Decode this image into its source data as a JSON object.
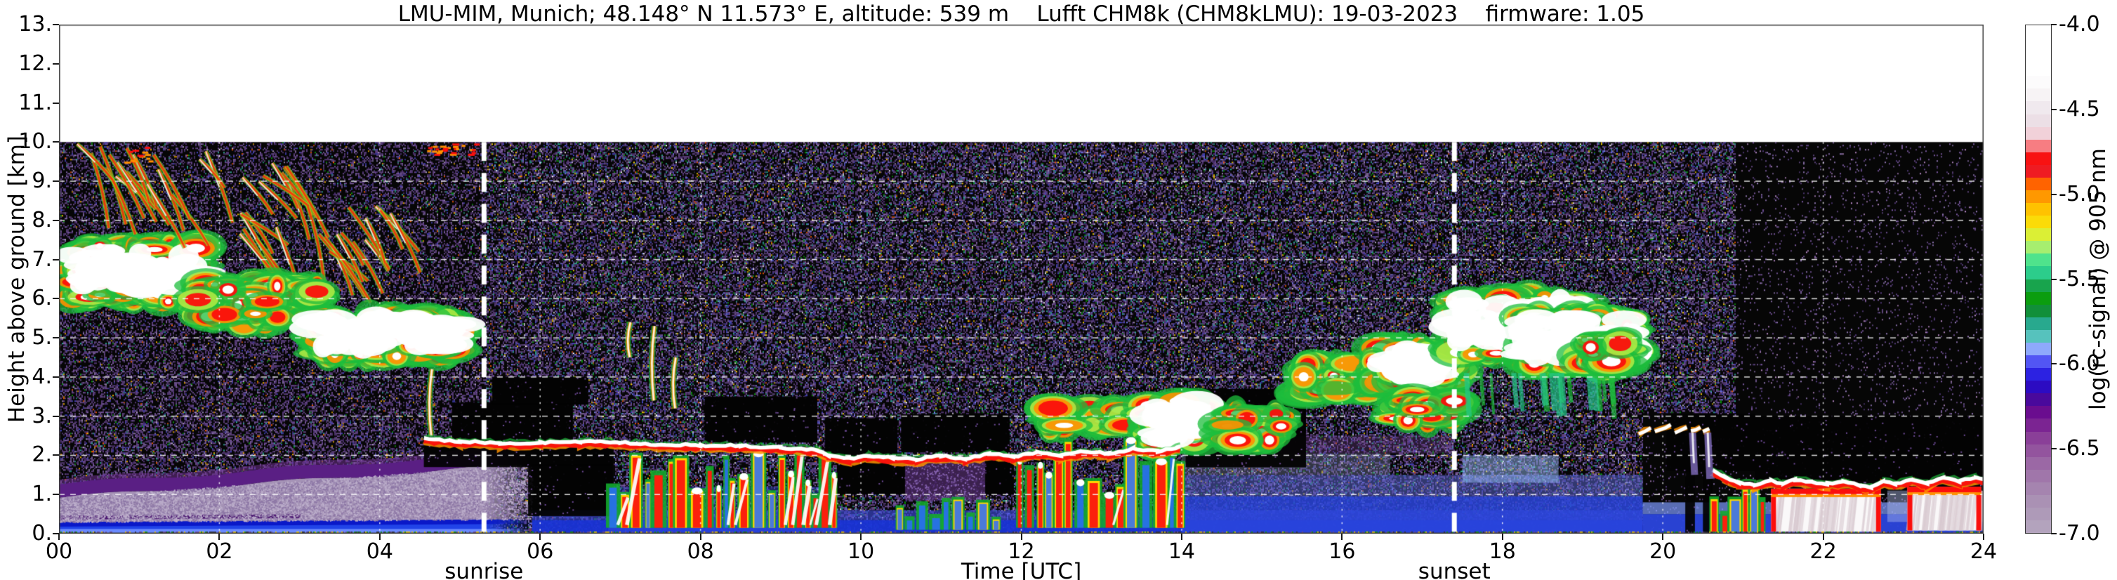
{
  "header": {
    "title": "LMU-MIM, Munich; 48.148° N 11.573° E, altitude: 539 m    Lufft CHM8k (CHM8kLMU): 19-03-2023    firmware: 1.05"
  },
  "axes": {
    "ylabel": "Height above ground [km]",
    "xlabel": "Time [UTC]",
    "yticks": [
      "13.",
      "12.",
      "11.",
      "10.",
      "9.",
      "8.",
      "7.",
      "6.",
      "5.",
      "4.",
      "3.",
      "2.",
      "1.",
      "0."
    ],
    "xticks": [
      "00",
      "02",
      "04",
      "06",
      "08",
      "10",
      "12",
      "14",
      "16",
      "18",
      "20",
      "22",
      "24"
    ]
  },
  "annotations": {
    "sunrise": {
      "label": "sunrise",
      "x_hours": 5.3
    },
    "sunset": {
      "label": "sunset",
      "x_hours": 17.4
    }
  },
  "colorbar": {
    "label": "log(rc-signal) @ 905 nm",
    "ticks": [
      "-4.0",
      "-4.5",
      "-5.0",
      "-5.5",
      "-6.0",
      "-6.5",
      "-7.0"
    ],
    "tick_values": [
      -4.0,
      -4.5,
      -5.0,
      -5.5,
      -6.0,
      -6.5,
      -7.0
    ],
    "vmin": -7.0,
    "vmax": -4.0,
    "steps": 40
  },
  "chart_data": {
    "type": "heatmap",
    "title": "LMU-MIM, Munich; 48.148° N 11.573° E, altitude: 539 m    Lufft CHM8k (CHM8kLMU): 19-03-2023    firmware: 1.05",
    "site": "LMU-MIM, Munich",
    "latitude": "48.148° N",
    "longitude": "11.573° E",
    "altitude": "539 m",
    "instrument": "Lufft CHM8k",
    "instrument_id": "CHM8kLMU",
    "date": "19-03-2023",
    "firmware": "1.05",
    "xlabel": "Time [UTC]",
    "ylabel": "Height above ground [km]",
    "zlabel": "log(rc-signal) @ 905 nm",
    "x_range_hours": [
      0,
      24
    ],
    "x_tick_step_hours": 2,
    "y_axis_range_km": [
      0,
      13
    ],
    "y_data_range_km": [
      0,
      10
    ],
    "z_range_log": [
      -7.0,
      -4.0
    ],
    "grid": true,
    "sunrise_hours": 5.3,
    "sunset_hours": 17.4,
    "colormap_stops": [
      [
        -7.0,
        "#b5a8bf"
      ],
      [
        -6.8,
        "#a98fb3"
      ],
      [
        -6.6,
        "#9c6ba6"
      ],
      [
        -6.45,
        "#8c4399"
      ],
      [
        -6.3,
        "#6f0e8d"
      ],
      [
        -6.2,
        "#44089e"
      ],
      [
        -6.1,
        "#1d0dd8"
      ],
      [
        -6.0,
        "#4444f2"
      ],
      [
        -5.95,
        "#7d86fb"
      ],
      [
        -5.88,
        "#9cc8fd"
      ],
      [
        -5.85,
        "#63c6c8"
      ],
      [
        -5.8,
        "#30b49b"
      ],
      [
        -5.72,
        "#1f9c80"
      ],
      [
        -5.68,
        "#0e8c28"
      ],
      [
        -5.6,
        "#0aa00a"
      ],
      [
        -5.54,
        "#17a24a"
      ],
      [
        -5.48,
        "#27c88a"
      ],
      [
        -5.4,
        "#3fe08e"
      ],
      [
        -5.33,
        "#98ee85"
      ],
      [
        -5.28,
        "#bfef45"
      ],
      [
        -5.22,
        "#e6ef2e"
      ],
      [
        -5.15,
        "#ffd700"
      ],
      [
        -5.08,
        "#ffc000"
      ],
      [
        -5.0,
        "#ff9000"
      ],
      [
        -4.93,
        "#ff5e00"
      ],
      [
        -4.87,
        "#ee1c24"
      ],
      [
        -4.76,
        "#fb0f0c"
      ],
      [
        -4.68,
        "#f4c9d2"
      ],
      [
        -4.55,
        "#ebe1e8"
      ],
      [
        -4.42,
        "#f6f2f4"
      ],
      [
        -4.3,
        "#ffffff"
      ],
      [
        -4.0,
        "#ffffff"
      ]
    ],
    "features": {
      "speckle_density": {
        "predawn": 0.4,
        "day": 0.48,
        "night": 0.055
      },
      "black_zones": [
        [
          4.55,
          6.9,
          1.7,
          2.4
        ],
        [
          5.85,
          6.9,
          0.45,
          1.75
        ],
        [
          4.9,
          6.4,
          2.4,
          3.35
        ],
        [
          5.4,
          6.6,
          3.3,
          4.0
        ],
        [
          8.05,
          9.45,
          2.35,
          3.5
        ],
        [
          9.55,
          10.45,
          1.95,
          2.95
        ],
        [
          9.7,
          11.9,
          1.0,
          1.95
        ],
        [
          10.5,
          11.85,
          2.1,
          3.05
        ],
        [
          12.15,
          12.6,
          2.55,
          3.4
        ],
        [
          14.05,
          15.55,
          1.7,
          3.7
        ],
        [
          20.05,
          21.15,
          1.6,
          3.05
        ],
        [
          21.15,
          24,
          1.35,
          3.0
        ],
        [
          20.28,
          20.4,
          0,
          1.6
        ],
        [
          20.5,
          20.62,
          0,
          1.55
        ]
      ],
      "purple_patches": [
        [
          10.55,
          11.55,
          0.85,
          1.9
        ]
      ],
      "morning_boundary_layer": {
        "t_end": 5.9,
        "blue_top": [
          0.3,
          0.012
        ],
        "mauve_top": [
          0.92,
          0.145
        ],
        "dark_band_thickness": 0.34
      },
      "clouds": [
        {
          "t": [
            0.15,
            1.75
          ],
          "z": [
            5.6,
            7.7
          ],
          "w": 0.9,
          "kind": "mass"
        },
        {
          "t": [
            0.2,
            2.9
          ],
          "z": [
            7.3,
            10.0
          ],
          "w": 0.5,
          "kind": "cirrus"
        },
        {
          "t": [
            2.0,
            4.3
          ],
          "z": [
            5.9,
            8.4
          ],
          "w": 0.3,
          "kind": "cirrus"
        },
        {
          "t": [
            1.7,
            3.25
          ],
          "z": [
            5.1,
            6.7
          ],
          "w": 0.55,
          "kind": "mass"
        },
        {
          "t": [
            3.2,
            5.0
          ],
          "z": [
            4.3,
            5.8
          ],
          "w": 0.95,
          "kind": "mass"
        },
        {
          "t": [
            4.4,
            4.85
          ],
          "z": [
            2.5,
            4.2
          ],
          "w": 0,
          "kind": "wisp"
        },
        {
          "t": [
            0.8,
            1.2
          ],
          "z": [
            9.5,
            9.95
          ],
          "w": 0,
          "kind": "edge"
        },
        {
          "t": [
            4.55,
            5.2
          ],
          "z": [
            9.7,
            10.0
          ],
          "w": 0,
          "kind": "edge"
        },
        {
          "t": [
            7.0,
            7.2
          ],
          "z": [
            4.5,
            5.4
          ],
          "w": 0,
          "kind": "wisp"
        },
        {
          "t": [
            7.3,
            7.5
          ],
          "z": [
            3.4,
            5.3
          ],
          "w": 0,
          "kind": "wisp"
        },
        {
          "t": [
            7.55,
            7.78
          ],
          "z": [
            3.2,
            4.5
          ],
          "w": 0,
          "kind": "wisp"
        },
        {
          "t": [
            12.3,
            13.4
          ],
          "z": [
            2.55,
            3.35
          ],
          "w": 0.5,
          "kind": "mass"
        },
        {
          "t": [
            13.55,
            14.3
          ],
          "z": [
            1.9,
            3.7
          ],
          "w": 0.9,
          "kind": "mass"
        },
        {
          "t": [
            14.55,
            15.25
          ],
          "z": [
            2.1,
            3.3
          ],
          "w": 0.7,
          "kind": "mass"
        },
        {
          "t": [
            15.5,
            16.35
          ],
          "z": [
            3.3,
            4.55
          ],
          "w": 0.6,
          "kind": "mass"
        },
        {
          "t": [
            16.35,
            17.42
          ],
          "z": [
            3.5,
            5.0
          ],
          "w": 0.9,
          "kind": "mass"
        },
        {
          "t": [
            16.6,
            17.42
          ],
          "z": [
            2.7,
            3.6
          ],
          "w": 0.5,
          "kind": "mass"
        },
        {
          "t": [
            17.42,
            19.0
          ],
          "z": [
            4.2,
            6.4
          ],
          "w": 0.9,
          "kind": "mass"
        },
        {
          "t": [
            18.2,
            19.65
          ],
          "z": [
            3.9,
            5.9
          ],
          "w": 0.9,
          "kind": "mass"
        },
        {
          "t": [
            17.5,
            19.4
          ],
          "z": [
            2.9,
            4.1
          ],
          "w": 0.35,
          "kind": "tails"
        },
        {
          "t": [
            19.0,
            19.55
          ],
          "z": [
            4.0,
            5.2
          ],
          "w": 0.6,
          "kind": "mass"
        }
      ],
      "plume_fields": [
        [
          6.85,
          9.7,
          0.2,
          2.15,
          1
        ],
        [
          11.95,
          14.0,
          0.2,
          2.5,
          1
        ],
        [
          10.45,
          11.7,
          0.15,
          0.95,
          0
        ],
        [
          20.6,
          21.25,
          0.1,
          1.3,
          0.5
        ]
      ],
      "fog_masses": [
        [
          21.35,
          22.72,
          0.05,
          1.15
        ],
        [
          23.05,
          23.97,
          0.08,
          1.2
        ]
      ],
      "aerosol_top_line_morning": [
        [
          4.55,
          2.42
        ],
        [
          5.0,
          2.36
        ],
        [
          5.5,
          2.31
        ],
        [
          6.0,
          2.32
        ],
        [
          6.5,
          2.35
        ],
        [
          7.0,
          2.33
        ],
        [
          7.5,
          2.28
        ],
        [
          8.0,
          2.26
        ],
        [
          8.5,
          2.24
        ],
        [
          9.0,
          2.2
        ],
        [
          9.45,
          2.15
        ],
        [
          9.6,
          2.0
        ],
        [
          9.85,
          1.92
        ],
        [
          10.1,
          2.0
        ],
        [
          10.4,
          1.93
        ],
        [
          10.7,
          1.9
        ],
        [
          11.0,
          1.99
        ],
        [
          11.3,
          1.92
        ],
        [
          11.6,
          2.04
        ],
        [
          11.9,
          1.97
        ],
        [
          12.2,
          2.08
        ],
        [
          12.5,
          2.0
        ],
        [
          12.8,
          2.1
        ],
        [
          13.1,
          2.04
        ],
        [
          13.4,
          2.18
        ],
        [
          13.7,
          2.1
        ],
        [
          13.98,
          2.22
        ]
      ],
      "cloud_top_line_night": [
        [
          20.62,
          1.62
        ],
        [
          20.78,
          1.45
        ],
        [
          20.95,
          1.3
        ],
        [
          21.15,
          1.26
        ],
        [
          21.35,
          1.36
        ],
        [
          21.5,
          1.28
        ],
        [
          21.65,
          1.38
        ],
        [
          21.85,
          1.32
        ],
        [
          22.05,
          1.28
        ],
        [
          22.25,
          1.34
        ],
        [
          22.45,
          1.24
        ],
        [
          22.6,
          1.18
        ],
        [
          22.75,
          1.34
        ],
        [
          22.9,
          1.28
        ],
        [
          23.1,
          1.38
        ],
        [
          23.3,
          1.28
        ],
        [
          23.5,
          1.44
        ],
        [
          23.7,
          1.34
        ],
        [
          23.9,
          1.44
        ],
        [
          24.0,
          1.38
        ]
      ],
      "evening_segments": [
        [
          19.7,
          2.55,
          19.85,
          2.7
        ],
        [
          19.9,
          2.62,
          20.1,
          2.76
        ],
        [
          20.15,
          2.6,
          20.3,
          2.72
        ],
        [
          20.35,
          2.62,
          20.47,
          2.7
        ],
        [
          20.5,
          2.6,
          20.58,
          2.66
        ]
      ],
      "evening_tails": [
        [
          20.37,
          2.58,
          1.5
        ],
        [
          20.56,
          2.58,
          1.4
        ]
      ]
    }
  }
}
